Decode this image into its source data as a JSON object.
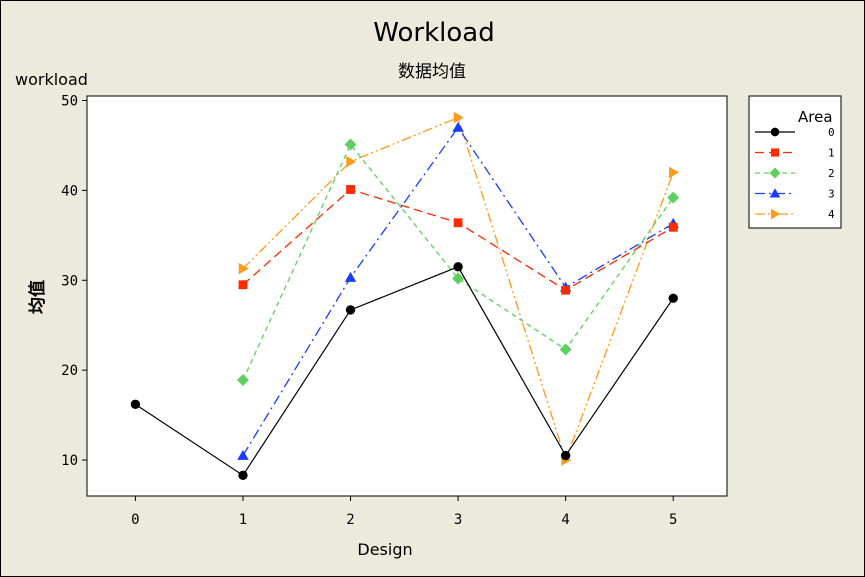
{
  "chart_data": {
    "type": "line",
    "title": "Workload",
    "subtitle": "数据均值",
    "top_label": "workload",
    "xlabel": "Design",
    "ylabel": "均值",
    "x": [
      0,
      1,
      2,
      3,
      4,
      5
    ],
    "x_ticks": [
      "0",
      "1",
      "2",
      "3",
      "4",
      "5"
    ],
    "xlim": [
      -0.45,
      5.5
    ],
    "ylim": [
      6,
      50.5
    ],
    "y_ticks": [
      "10",
      "20",
      "30",
      "40",
      "50"
    ],
    "y_tick_values": [
      10,
      20,
      30,
      40,
      50
    ],
    "grid": false,
    "legend": {
      "title": "Area",
      "position": "right"
    },
    "series": [
      {
        "name": "0",
        "values": [
          16.2,
          8.3,
          26.7,
          31.5,
          10.5,
          28.0
        ],
        "color": "#000000",
        "marker": "circle",
        "dash": ""
      },
      {
        "name": "1",
        "values": [
          null,
          29.5,
          40.1,
          36.4,
          28.9,
          35.9
        ],
        "color": "#ff2a00",
        "marker": "square",
        "dash": "9,5"
      },
      {
        "name": "2",
        "values": [
          null,
          18.9,
          45.1,
          30.2,
          22.3,
          39.2
        ],
        "color": "#5fcf5f",
        "marker": "diamond",
        "dash": "5,4"
      },
      {
        "name": "3",
        "values": [
          null,
          10.5,
          30.3,
          47.0,
          29.2,
          36.3
        ],
        "color": "#1a3cff",
        "marker": "triangle",
        "dash": "10,4,2,4"
      },
      {
        "name": "4",
        "values": [
          null,
          31.3,
          43.2,
          48.1,
          10.0,
          42.0
        ],
        "color": "#ff9a1a",
        "marker": "triangle-right",
        "dash": "10,3,2,3,2,3"
      }
    ]
  }
}
